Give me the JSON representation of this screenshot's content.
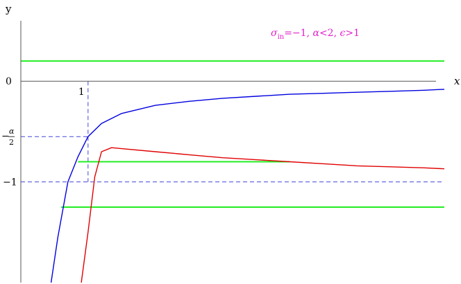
{
  "chart_data": {
    "type": "line",
    "title": "",
    "xlabel": "x",
    "ylabel": "y",
    "xlim": [
      0,
      6.3
    ],
    "ylim": [
      -2.0,
      0.6
    ],
    "annotation": {
      "parts": [
        "σ",
        "in",
        "=−1, ",
        "α",
        "<2, ",
        "ϵ",
        ">1"
      ],
      "color": "#e020c8"
    },
    "tick_labels": {
      "x_one": "1",
      "y_zero": "0",
      "y_minus_one": "−1",
      "y_alpha_minus": "−",
      "y_alpha_num": "α",
      "y_alpha_den": "2"
    },
    "reference_values": {
      "x_one": 1,
      "y_minus_one": -1,
      "y_minus_alpha_over_2": -0.55
    },
    "series": [
      {
        "color": "#0000e0",
        "x": [
          0.45,
          0.55,
          0.7,
          0.85,
          1.0,
          1.2,
          1.5,
          2.0,
          2.5,
          3.0,
          3.5,
          4.0,
          4.5,
          5.0,
          5.5,
          6.0,
          6.3
        ],
        "y": [
          -2.0,
          -1.55,
          -1.0,
          -0.75,
          -0.55,
          -0.42,
          -0.32,
          -0.24,
          -0.2,
          -0.17,
          -0.15,
          -0.13,
          -0.12,
          -0.11,
          -0.1,
          -0.09,
          -0.08
        ]
      },
      {
        "color": "#e00000",
        "x": [
          0.9,
          1.0,
          1.1,
          1.2,
          1.35,
          1.5,
          2.0,
          2.5,
          3.0,
          3.5,
          4.0,
          4.5,
          5.0,
          5.5,
          6.0,
          6.3
        ],
        "y": [
          -2.0,
          -1.5,
          -0.95,
          -0.7,
          -0.66,
          -0.67,
          -0.7,
          -0.73,
          -0.76,
          -0.78,
          -0.8,
          -0.82,
          -0.84,
          -0.85,
          -0.86,
          -0.87
        ]
      }
    ],
    "horizontal_segments": [
      {
        "color": "#22ee22",
        "y": 0.2,
        "x": [
          0,
          6.3
        ]
      },
      {
        "color": "#22ee22",
        "y": -0.8,
        "x": [
          0.85,
          4.0
        ]
      },
      {
        "color": "#22ee22",
        "y": -1.25,
        "x": [
          0.6,
          6.3
        ]
      }
    ]
  }
}
